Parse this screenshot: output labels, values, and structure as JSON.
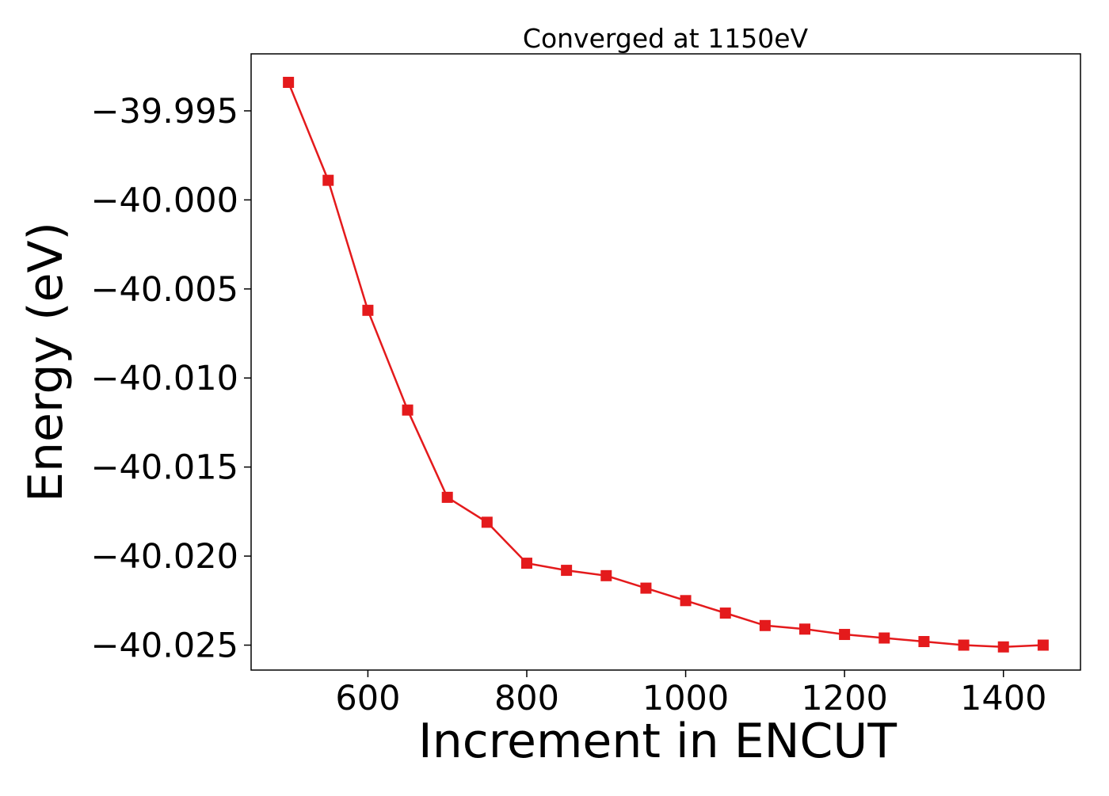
{
  "chart_data": {
    "type": "line",
    "title": "Converged at 1150eV",
    "xlabel": "Increment in ENCUT",
    "ylabel": "Energy (eV)",
    "xlim": [
      453,
      1497
    ],
    "ylim": [
      -40.0264,
      -39.9918
    ],
    "xticks": [
      600,
      800,
      1000,
      1200,
      1400
    ],
    "yticks": [
      -39.995,
      -40.0,
      -40.005,
      -40.01,
      -40.015,
      -40.02,
      -40.025
    ],
    "ytick_labels": [
      "−39.995",
      "−40.000",
      "−40.005",
      "−40.010",
      "−40.015",
      "−40.020",
      "−40.025"
    ],
    "grid": false,
    "legend": "none",
    "series": [
      {
        "color": "#e41a1c",
        "marker": "square",
        "x": [
          500,
          550,
          600,
          650,
          700,
          750,
          800,
          850,
          900,
          950,
          1000,
          1050,
          1100,
          1150,
          1200,
          1250,
          1300,
          1350,
          1400,
          1450
        ],
        "y": [
          -39.9934,
          -39.9989,
          -40.0062,
          -40.0118,
          -40.0167,
          -40.0181,
          -40.0204,
          -40.0208,
          -40.0211,
          -40.0218,
          -40.0225,
          -40.0232,
          -40.0239,
          -40.0241,
          -40.0244,
          -40.0246,
          -40.0248,
          -40.025,
          -40.0251,
          -40.025
        ]
      }
    ]
  }
}
